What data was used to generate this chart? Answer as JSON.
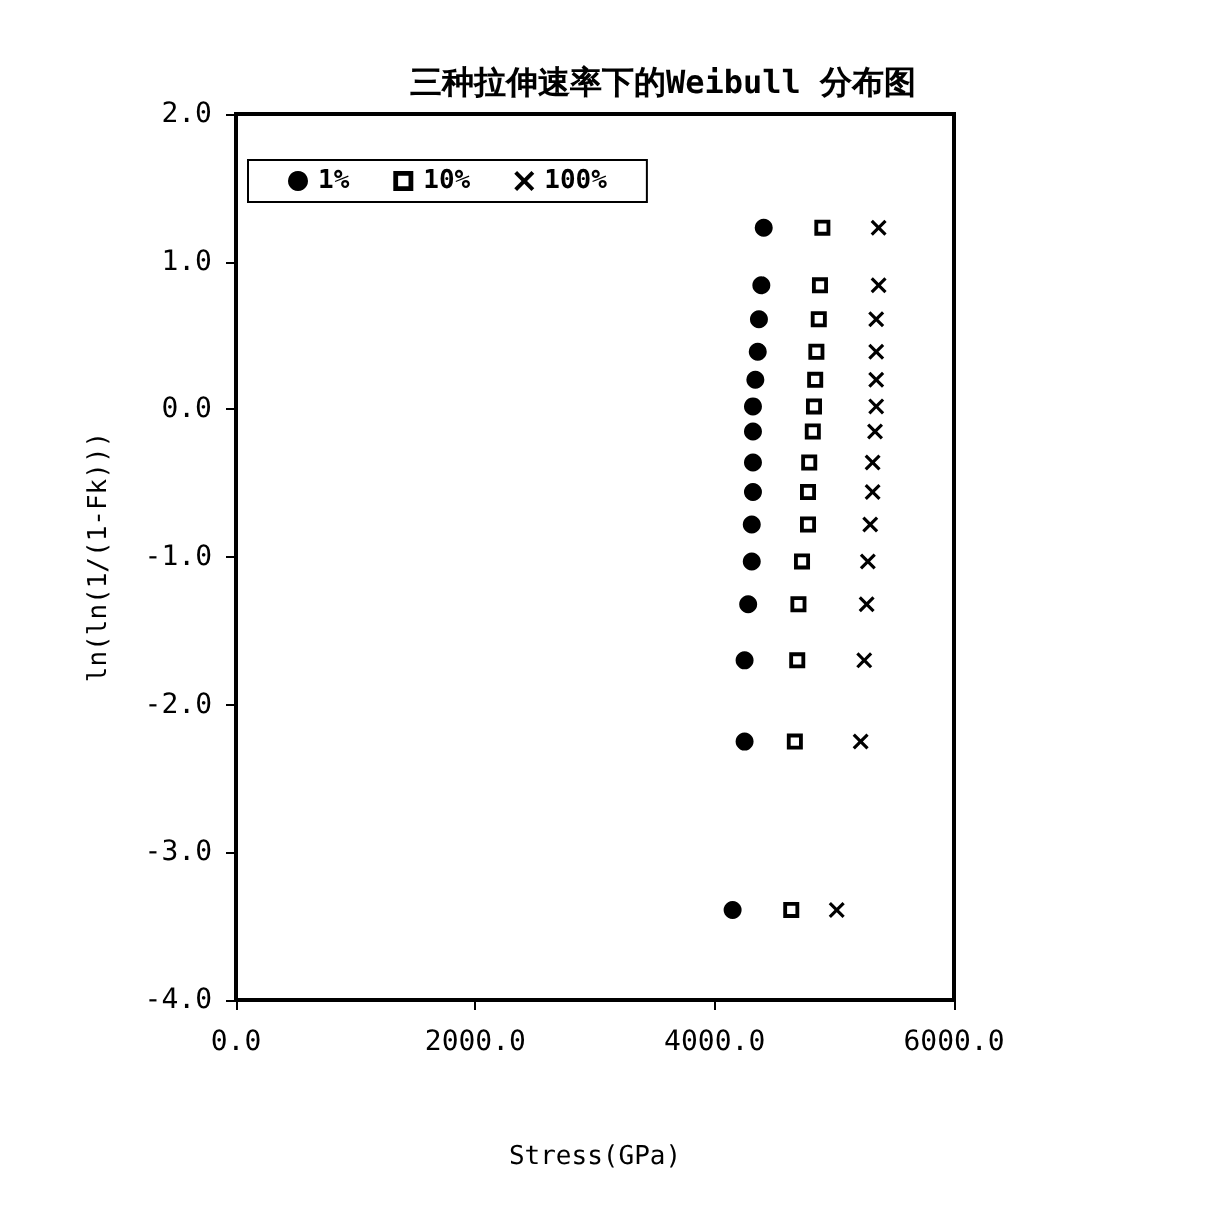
{
  "chart_data": {
    "type": "scatter",
    "title": "三种拉伸速率下的Weibull 分布图",
    "xlabel": "Stress(GPa)",
    "ylabel": "ln(ln(1/(1-Fk)))",
    "xlim": [
      0,
      6000
    ],
    "xticks": [
      {
        "value": 0,
        "label": "0.0"
      },
      {
        "value": 2000,
        "label": "2000.0"
      },
      {
        "value": 4000,
        "label": "4000.0"
      },
      {
        "value": 6000,
        "label": "6000.0"
      }
    ],
    "ylim": [
      -4,
      2
    ],
    "yticks": [
      {
        "value": -4,
        "label": "-4.0"
      },
      {
        "value": -3,
        "label": "-3.0"
      },
      {
        "value": -2,
        "label": "-2.0"
      },
      {
        "value": -1,
        "label": "-1.0"
      },
      {
        "value": 0,
        "label": "0.0"
      },
      {
        "value": 1,
        "label": "1.0"
      },
      {
        "value": 2,
        "label": "2.0"
      }
    ],
    "grid": false,
    "legend": "top left",
    "series": [
      {
        "name": "1%",
        "color": "#000000",
        "marker": "circle",
        "x": [
          4410,
          4390,
          4370,
          4360,
          4340,
          4320,
          4320,
          4320,
          4320,
          4310,
          4310,
          4280,
          4250,
          4250,
          4150
        ],
        "values": [
          1.23,
          0.84,
          0.61,
          0.39,
          0.2,
          0.02,
          -0.15,
          -0.36,
          -0.56,
          -0.78,
          -1.03,
          -1.32,
          -1.7,
          -2.25,
          -3.39
        ]
      },
      {
        "name": "10%",
        "color": "#000000",
        "marker": "square",
        "x": [
          4900,
          4880,
          4870,
          4850,
          4840,
          4830,
          4820,
          4790,
          4780,
          4780,
          4730,
          4700,
          4690,
          4670,
          4640
        ],
        "values": [
          1.23,
          0.84,
          0.61,
          0.39,
          0.2,
          0.02,
          -0.15,
          -0.36,
          -0.56,
          -0.78,
          -1.03,
          -1.32,
          -1.7,
          -2.25,
          -3.39
        ]
      },
      {
        "name": "100%",
        "color": "#000000",
        "marker": "cross",
        "x": [
          5370,
          5370,
          5350,
          5350,
          5350,
          5350,
          5340,
          5320,
          5320,
          5300,
          5280,
          5270,
          5250,
          5220,
          5020
        ],
        "values": [
          1.23,
          0.84,
          0.61,
          0.39,
          0.2,
          0.02,
          -0.15,
          -0.36,
          -0.56,
          -0.78,
          -1.03,
          -1.32,
          -1.7,
          -2.25,
          -3.39
        ]
      }
    ]
  }
}
